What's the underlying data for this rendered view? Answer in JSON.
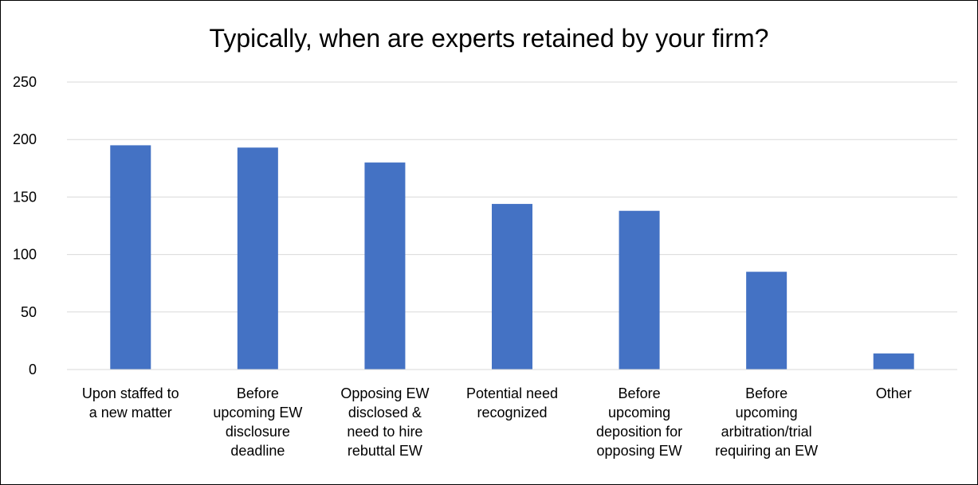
{
  "chart_data": {
    "type": "bar",
    "title": "Typically, when are experts retained by your firm?",
    "xlabel": "",
    "ylabel": "",
    "categories": [
      [
        "Upon staffed to",
        "a new matter"
      ],
      [
        "Before",
        "upcoming EW",
        "disclosure",
        "deadline"
      ],
      [
        "Opposing EW",
        "disclosed &",
        "need to hire",
        "rebuttal EW"
      ],
      [
        "Potential need",
        "recognized"
      ],
      [
        "Before",
        "upcoming",
        "deposition for",
        "opposing EW"
      ],
      [
        "Before",
        "upcoming",
        "arbitration/trial",
        "requiring an EW"
      ],
      [
        "Other"
      ]
    ],
    "values": [
      195,
      193,
      180,
      144,
      138,
      85,
      14
    ],
    "ylim": [
      0,
      250
    ],
    "yticks": [
      0,
      50,
      100,
      150,
      200,
      250
    ],
    "grid": true,
    "legend": "none",
    "colors": {
      "bar": "#4472C4",
      "grid": "#D9D9D9",
      "text": "#000000"
    }
  }
}
